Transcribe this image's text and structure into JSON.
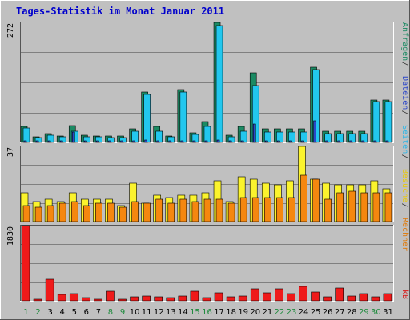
{
  "chart_data": {
    "type": "bar",
    "title": "Tages-Statistik im Monat Januar 2011",
    "categories": [
      "1",
      "2",
      "3",
      "4",
      "5",
      "6",
      "7",
      "8",
      "9",
      "10",
      "11",
      "12",
      "13",
      "14",
      "15",
      "16",
      "17",
      "18",
      "19",
      "20",
      "21",
      "22",
      "23",
      "24",
      "25",
      "26",
      "27",
      "28",
      "29",
      "30",
      "31"
    ],
    "weekend_days": [
      "1",
      "2",
      "8",
      "9",
      "15",
      "16",
      "22",
      "23",
      "29",
      "30"
    ],
    "panels": [
      {
        "id": "top",
        "max_label": "272",
        "max": 272,
        "series": [
          {
            "name": "Anfragen",
            "color": "#1b8a63",
            "values": [
              37,
              12,
              20,
              15,
              38,
              17,
              15,
              14,
              14,
              30,
              115,
              36,
              15,
              120,
              22,
              47,
              272,
              17,
              36,
              158,
              30,
              30,
              30,
              30,
              170,
              25,
              25,
              25,
              25,
              97,
              97
            ]
          },
          {
            "name": "Dateien",
            "color": "#22c7ee",
            "values": [
              32,
              10,
              16,
              12,
              26,
              12,
              12,
              10,
              10,
              25,
              108,
              26,
              12,
              115,
              18,
              36,
              265,
              12,
              25,
              128,
              23,
              23,
              23,
              23,
              165,
              20,
              20,
              20,
              20,
              92,
              92
            ]
          },
          {
            "name": "Seiten",
            "color": "#2b46c8",
            "values": [
              4,
              2,
              3,
              2,
              23,
              2,
              2,
              2,
              2,
              3,
              5,
              3,
              2,
              4,
              3,
              4,
              6,
              3,
              4,
              42,
              4,
              4,
              4,
              4,
              49,
              3,
              3,
              3,
              3,
              4,
              4
            ]
          }
        ]
      },
      {
        "id": "middle",
        "max_label": "37",
        "max": 37,
        "series": [
          {
            "name": "Besuche",
            "color": "#fbf32d",
            "values": [
              14,
              10,
              11,
              10,
              14,
              11,
              11,
              11,
              8,
              19,
              9,
              13,
              12,
              13,
              13,
              14,
              20,
              10,
              22,
              21,
              19,
              18,
              20,
              37,
              21,
              19,
              18,
              18,
              18,
              20,
              16
            ]
          },
          {
            "name": "Rechner",
            "color": "#f5870f",
            "values": [
              8,
              7,
              8,
              9,
              10,
              8,
              9,
              9,
              7,
              10,
              9,
              11,
              9,
              11,
              10,
              11,
              11,
              9,
              12,
              12,
              12,
              12,
              12,
              23,
              21,
              11,
              14,
              15,
              14,
              14,
              14
            ]
          }
        ]
      },
      {
        "id": "bottom",
        "max_label": "1830",
        "max": 1830,
        "series": [
          {
            "name": "kB",
            "color": "#ef1a1a",
            "values": [
              1830,
              30,
              530,
              150,
              170,
              80,
              40,
              240,
              40,
              90,
              110,
              90,
              70,
              110,
              240,
              80,
              190,
              90,
              110,
              290,
              190,
              290,
              180,
              360,
              220,
              90,
              310,
              110,
              170,
              90,
              170
            ]
          }
        ]
      }
    ],
    "right_label_parts": [
      {
        "text": "Anfragen",
        "color": "#1b8a63",
        "panel": "top"
      },
      {
        "text": " / ",
        "color": "#333333",
        "panel": "top"
      },
      {
        "text": "Dateien",
        "color": "#2b46c8",
        "panel": "top"
      },
      {
        "text": " / ",
        "color": "#333333",
        "panel": "top"
      },
      {
        "text": "Seiten",
        "color": "#2bb6e8",
        "panel": "top"
      },
      {
        "text": " / ",
        "color": "#333333",
        "panel": "middle"
      },
      {
        "text": "Besuche",
        "color": "#e8c80a",
        "panel": "middle"
      },
      {
        "text": " / ",
        "color": "#333333",
        "panel": "middle"
      },
      {
        "text": "Rechner",
        "color": "#e07a0a",
        "panel": "middle"
      },
      {
        "text": "kB",
        "color": "#d81a1a",
        "panel": "bottom"
      }
    ],
    "colors": {
      "background": "#c0c0c0",
      "title": "#0000cc",
      "tick_weekday": "#000000",
      "tick_weekend": "#1b8a3a"
    }
  }
}
